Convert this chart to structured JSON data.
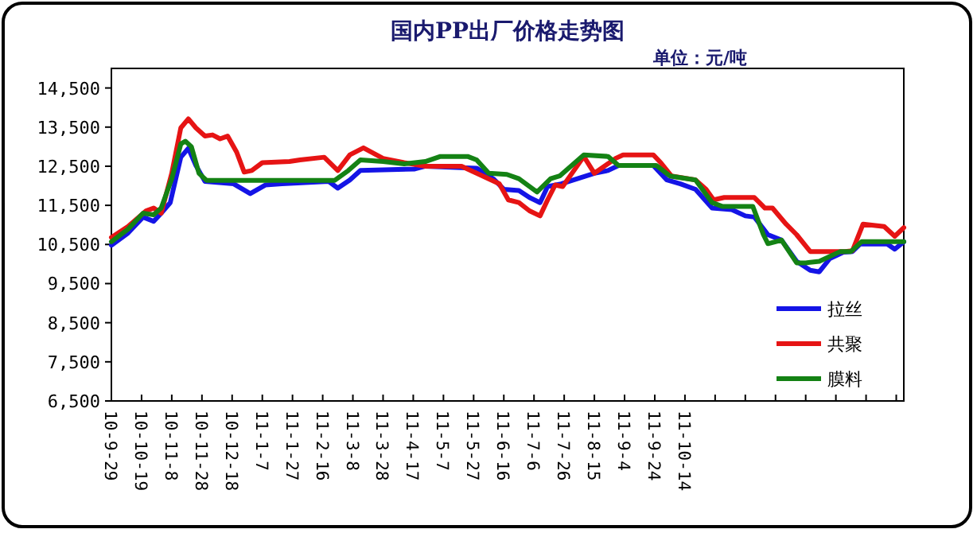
{
  "chart_data": {
    "type": "line",
    "title": "国内PP出厂价格走势图",
    "annotations": [
      "单位：元/吨"
    ],
    "xlim": [
      "2010-09-29",
      "2012-03-07"
    ],
    "xticks": [
      {
        "value": "2010-09-29",
        "label": "10-9-29"
      },
      {
        "value": "2010-10-19",
        "label": "10-10-19"
      },
      {
        "value": "2010-11-08",
        "label": "10-11-8"
      },
      {
        "value": "2010-11-28",
        "label": "10-11-28"
      },
      {
        "value": "2010-12-18",
        "label": "10-12-18"
      },
      {
        "value": "2011-01-07",
        "label": "11-1-7"
      },
      {
        "value": "2011-01-27",
        "label": "11-1-27"
      },
      {
        "value": "2011-02-16",
        "label": "11-2-16"
      },
      {
        "value": "2011-03-08",
        "label": "11-3-8"
      },
      {
        "value": "2011-03-28",
        "label": "11-3-28"
      },
      {
        "value": "2011-04-17",
        "label": "11-4-17"
      },
      {
        "value": "2011-05-07",
        "label": "11-5-7"
      },
      {
        "value": "2011-05-27",
        "label": "11-5-27"
      },
      {
        "value": "2011-06-16",
        "label": "11-6-16"
      },
      {
        "value": "2011-07-06",
        "label": "11-7-6"
      },
      {
        "value": "2011-07-26",
        "label": "11-7-26"
      },
      {
        "value": "2011-08-15",
        "label": "11-8-15"
      },
      {
        "value": "2011-09-04",
        "label": "11-9-4"
      },
      {
        "value": "2011-09-24",
        "label": "11-9-24"
      },
      {
        "value": "2011-10-14",
        "label": "11-10-14"
      },
      {
        "value": "2011-11-03",
        "label": null
      },
      {
        "value": "2011-11-23",
        "label": null
      },
      {
        "value": "2011-12-13",
        "label": null
      },
      {
        "value": "2012-01-02",
        "label": null
      },
      {
        "value": "2012-01-22",
        "label": null
      },
      {
        "value": "2012-02-11",
        "label": null
      },
      {
        "value": "2012-03-02",
        "label": null
      }
    ],
    "ylim": [
      6500,
      15000
    ],
    "yticks": [
      {
        "value": 6500,
        "label": "6,500"
      },
      {
        "value": 7500,
        "label": "7,500"
      },
      {
        "value": 8500,
        "label": "8,500"
      },
      {
        "value": 9500,
        "label": "9,500"
      },
      {
        "value": 10500,
        "label": "10,500"
      },
      {
        "value": 11500,
        "label": "11,500"
      },
      {
        "value": 12500,
        "label": "12,500"
      },
      {
        "value": 13500,
        "label": "13,500"
      },
      {
        "value": 14500,
        "label": "14,500"
      }
    ],
    "grid": false,
    "legend": "bottom right",
    "marker": "none",
    "line_style": "solid",
    "series": [
      {
        "name": "拉丝",
        "color": "#1414e6",
        "x": [
          "2010-09-29",
          "2010-10-10",
          "2010-10-20",
          "2010-10-27",
          "2010-11-01",
          "2010-11-07",
          "2010-11-14",
          "2010-11-19",
          "2010-11-24",
          "2010-11-30",
          "2010-12-19",
          "2010-12-30",
          "2011-01-09",
          "2011-01-20",
          "2011-02-20",
          "2011-02-26",
          "2011-03-06",
          "2011-03-13",
          "2011-04-18",
          "2011-04-25",
          "2011-05-29",
          "2011-06-09",
          "2011-06-16",
          "2011-06-26",
          "2011-07-03",
          "2011-07-10",
          "2011-07-15",
          "2011-07-24",
          "2011-08-15",
          "2011-08-24",
          "2011-08-31",
          "2011-09-23",
          "2011-10-02",
          "2011-10-11",
          "2011-10-21",
          "2011-11-01",
          "2011-11-14",
          "2011-11-23",
          "2011-11-29",
          "2011-12-08",
          "2011-12-17",
          "2011-12-27",
          "2012-01-05",
          "2012-01-11",
          "2012-01-18",
          "2012-01-27",
          "2012-02-02",
          "2012-02-07",
          "2012-02-25",
          "2012-03-01",
          "2012-03-07"
        ],
        "values": [
          10480,
          10790,
          11200,
          11090,
          11300,
          11570,
          12730,
          12960,
          12520,
          12110,
          12050,
          11800,
          12020,
          12050,
          12110,
          11940,
          12150,
          12390,
          12430,
          12500,
          12450,
          12180,
          11910,
          11880,
          11700,
          11570,
          11980,
          12050,
          12320,
          12390,
          12520,
          12520,
          12150,
          12050,
          11910,
          11430,
          11390,
          11230,
          11200,
          10750,
          10610,
          10070,
          9840,
          9800,
          10140,
          10300,
          10320,
          10510,
          10510,
          10380,
          10570
        ]
      },
      {
        "name": "共聚",
        "color": "#e61414",
        "x": [
          "2010-09-29",
          "2010-10-10",
          "2010-10-22",
          "2010-10-27",
          "2010-11-01",
          "2010-11-08",
          "2010-11-14",
          "2010-11-19",
          "2010-11-24",
          "2010-11-30",
          "2010-12-05",
          "2010-12-10",
          "2010-12-15",
          "2010-12-21",
          "2010-12-26",
          "2010-12-31",
          "2011-01-07",
          "2011-01-25",
          "2011-02-01",
          "2011-02-17",
          "2011-02-26",
          "2011-03-06",
          "2011-03-15",
          "2011-03-28",
          "2011-04-11",
          "2011-04-25",
          "2011-05-19",
          "2011-05-29",
          "2011-06-13",
          "2011-06-19",
          "2011-06-26",
          "2011-07-03",
          "2011-07-10",
          "2011-07-15",
          "2011-07-20",
          "2011-07-25",
          "2011-08-08",
          "2011-08-15",
          "2011-08-29",
          "2011-09-03",
          "2011-09-23",
          "2011-09-28",
          "2011-10-05",
          "2011-10-21",
          "2011-10-28",
          "2011-11-02",
          "2011-11-09",
          "2011-11-29",
          "2011-12-06",
          "2011-12-11",
          "2011-12-20",
          "2011-12-27",
          "2012-01-05",
          "2012-01-28",
          "2012-02-02",
          "2012-02-09",
          "2012-02-23",
          "2012-03-01",
          "2012-03-07"
        ],
        "values": [
          10680,
          10960,
          11360,
          11430,
          11300,
          12320,
          13480,
          13710,
          13480,
          13270,
          13300,
          13200,
          13270,
          12860,
          12350,
          12390,
          12590,
          12620,
          12660,
          12730,
          12390,
          12790,
          12970,
          12700,
          12590,
          12500,
          12500,
          12320,
          12050,
          11640,
          11570,
          11360,
          11230,
          11640,
          12020,
          11980,
          12750,
          12320,
          12700,
          12790,
          12790,
          12590,
          12250,
          12150,
          11910,
          11640,
          11700,
          11700,
          11430,
          11430,
          11020,
          10750,
          10320,
          10320,
          10340,
          11020,
          10960,
          10710,
          10930
        ]
      },
      {
        "name": "膜料",
        "color": "#148214",
        "x": [
          "2010-09-29",
          "2010-10-10",
          "2010-10-20",
          "2010-10-27",
          "2010-11-01",
          "2010-11-08",
          "2010-11-14",
          "2010-11-17",
          "2010-11-21",
          "2010-11-26",
          "2010-12-01",
          "2011-02-24",
          "2011-03-05",
          "2011-03-13",
          "2011-03-28",
          "2011-04-11",
          "2011-04-25",
          "2011-05-05",
          "2011-05-23",
          "2011-05-29",
          "2011-06-06",
          "2011-06-18",
          "2011-06-26",
          "2011-07-08",
          "2011-07-17",
          "2011-07-23",
          "2011-08-08",
          "2011-08-24",
          "2011-08-31",
          "2011-09-25",
          "2011-10-04",
          "2011-10-21",
          "2011-11-01",
          "2011-11-08",
          "2011-11-28",
          "2011-12-05",
          "2011-12-08",
          "2011-12-17",
          "2011-12-27",
          "2012-01-02",
          "2012-01-11",
          "2012-01-25",
          "2012-02-01",
          "2012-02-08",
          "2012-03-07"
        ],
        "values": [
          10570,
          10890,
          11300,
          11260,
          11430,
          12180,
          13070,
          13140,
          13000,
          12320,
          12140,
          12140,
          12390,
          12660,
          12620,
          12560,
          12620,
          12750,
          12750,
          12660,
          12320,
          12290,
          12180,
          11840,
          12180,
          12250,
          12790,
          12750,
          12520,
          12520,
          12250,
          12150,
          11570,
          11470,
          11470,
          10750,
          10520,
          10610,
          10030,
          10030,
          10070,
          10320,
          10320,
          10570,
          10570
        ]
      }
    ]
  }
}
